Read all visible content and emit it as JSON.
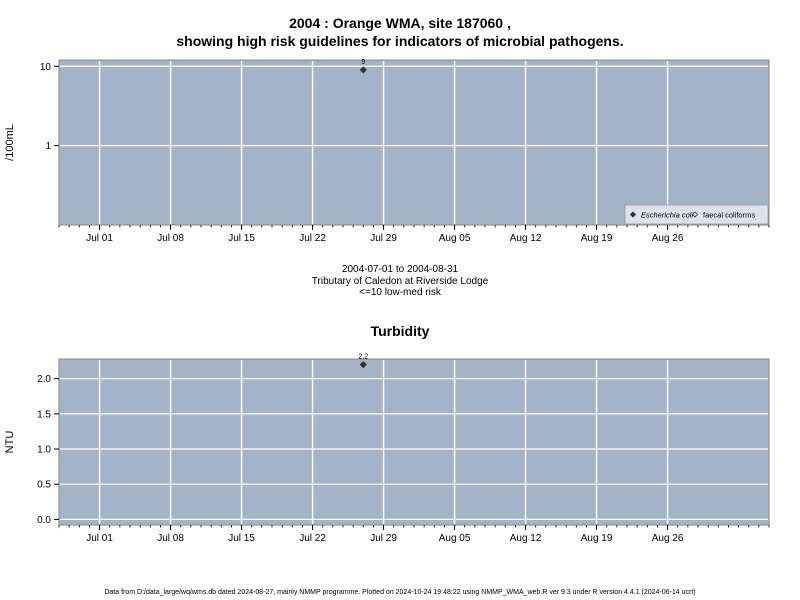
{
  "chart_data": [
    {
      "type": "scatter",
      "title": "2004 : Orange WMA, site 187060 ,",
      "subtitle": "showing high risk guidelines for indicators of microbial pathogens.",
      "ylabel": "/100mL",
      "yscale": "log",
      "ylim": [
        0.1,
        12
      ],
      "yticks": [
        1,
        10
      ],
      "ytick_labels": [
        "1",
        "10"
      ],
      "xlim": [
        "2004-06-27",
        "2004-09-05"
      ],
      "xticks": [
        "2004-07-01",
        "2004-07-08",
        "2004-07-15",
        "2004-07-22",
        "2004-07-29",
        "2004-08-05",
        "2004-08-12",
        "2004-08-19",
        "2004-08-26"
      ],
      "xtick_labels": [
        "Jul 01",
        "Jul 08",
        "Jul 15",
        "Jul 22",
        "Jul 29",
        "Aug 05",
        "Aug 12",
        "Aug 19",
        "Aug 26"
      ],
      "series": [
        {
          "name": "Escherichia coli",
          "marker": "filled-diamond",
          "points": [
            {
              "x": "2004-07-27",
              "y": 9,
              "label": "9"
            }
          ]
        },
        {
          "name": "faecal coliforms",
          "marker": "open-diamond",
          "points": []
        }
      ],
      "legend": "bottom-right",
      "grid": true,
      "captions": [
        "2004-07-01 to 2004-08-31",
        "Tributary of Caledon at Riverside Lodge",
        "<=10 low-med risk"
      ]
    },
    {
      "type": "scatter",
      "title": "Turbidity",
      "ylabel": "NTU",
      "ylim": [
        -0.08,
        2.28
      ],
      "yticks": [
        0,
        0.5,
        1,
        1.5,
        2
      ],
      "ytick_labels": [
        "0.0",
        "0.5",
        "1.0",
        "1.5",
        "2.0"
      ],
      "xlim": [
        "2004-06-27",
        "2004-09-05"
      ],
      "xticks": [
        "2004-07-01",
        "2004-07-08",
        "2004-07-15",
        "2004-07-22",
        "2004-07-29",
        "2004-08-05",
        "2004-08-12",
        "2004-08-19",
        "2004-08-26"
      ],
      "xtick_labels": [
        "Jul 01",
        "Jul 08",
        "Jul 15",
        "Jul 22",
        "Jul 29",
        "Aug 05",
        "Aug 12",
        "Aug 19",
        "Aug 26"
      ],
      "series": [
        {
          "marker": "filled-diamond",
          "points": [
            {
              "x": "2004-07-27",
              "y": 2.2,
              "label": "2.2"
            }
          ]
        }
      ],
      "grid": true
    }
  ],
  "footer": "Data from D:/data_large/wq/wms.db dated 2024-08-27, mainly NMMP programme. Plotted on 2024-10-24 19:48:22 using NMMP_WMA_web.R ver 9.3 under R version 4.4.1 (2024-06-14 ucrt)",
  "colors": {
    "panel_bg": "#a3b3c8",
    "grid": "#ffffff",
    "marker": "#333333",
    "axis": "#000000"
  }
}
